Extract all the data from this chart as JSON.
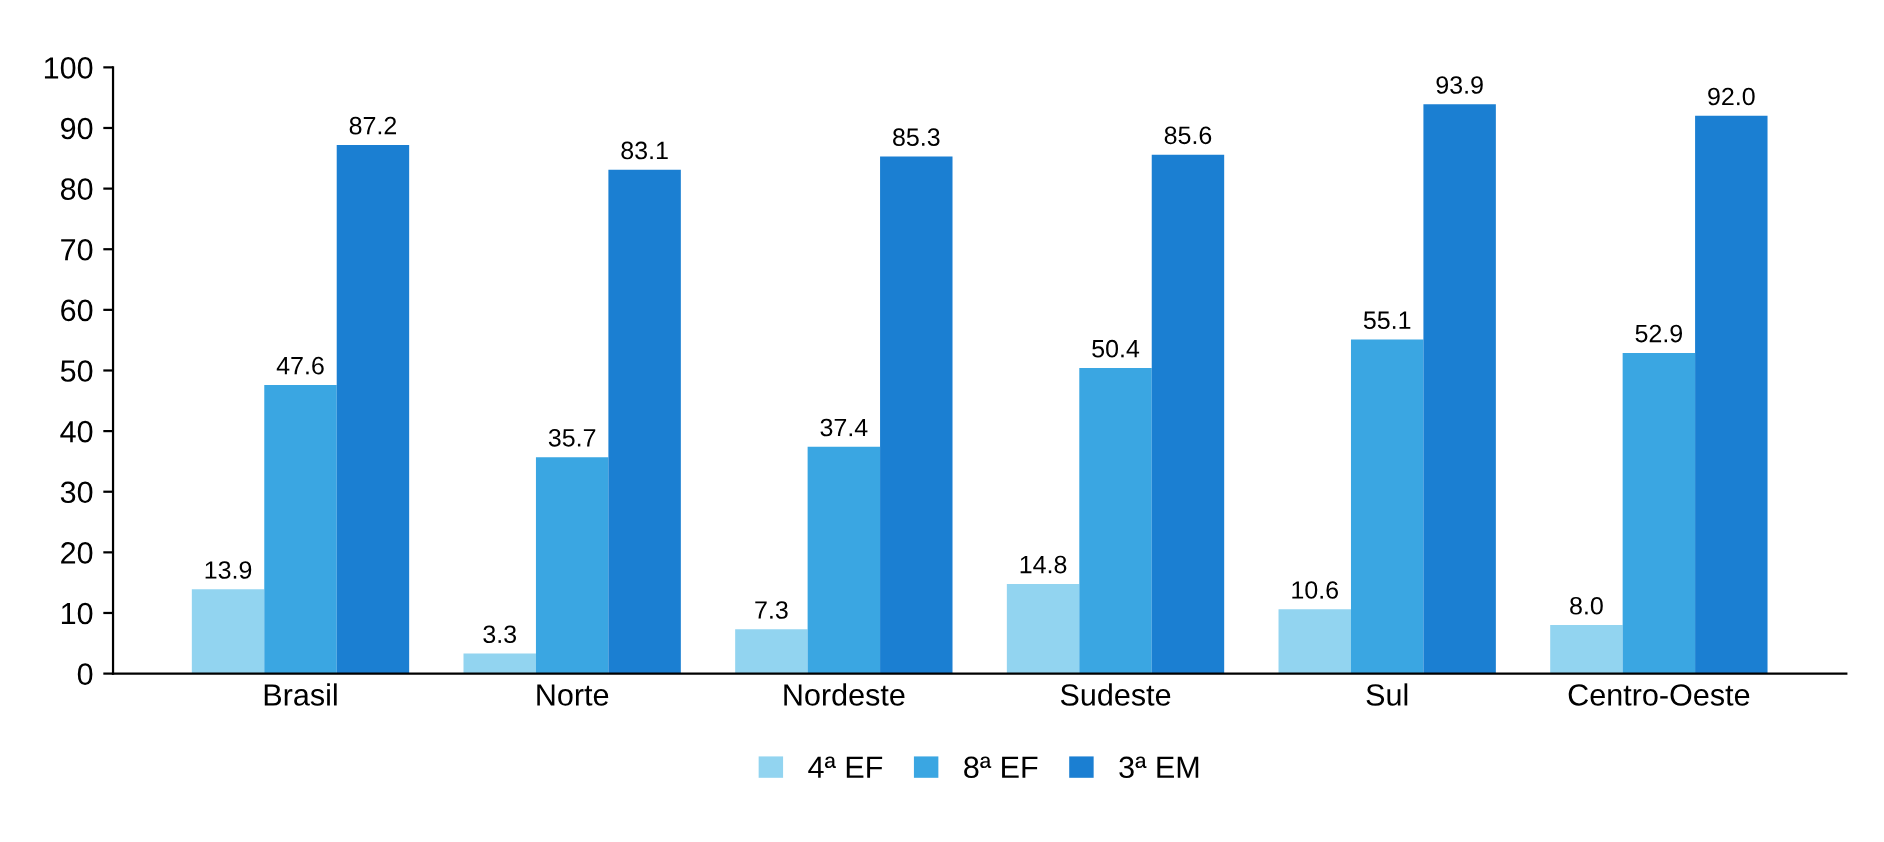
{
  "chart_data": {
    "type": "bar",
    "categories": [
      "Brasil",
      "Norte",
      "Nordeste",
      "Sudeste",
      "Sul",
      "Centro-Oeste"
    ],
    "series": [
      {
        "name": "4ª EF",
        "color": "#92d4f0",
        "values": [
          13.9,
          3.3,
          7.3,
          14.8,
          10.6,
          8.0
        ],
        "value_labels": [
          "13.9",
          "3.3",
          "7.3",
          "14.8",
          "10.6",
          "8.0"
        ]
      },
      {
        "name": "8ª EF",
        "color": "#3aa6e2",
        "values": [
          47.6,
          35.7,
          37.4,
          50.4,
          55.1,
          52.9
        ],
        "value_labels": [
          "47.6",
          "35.7",
          "37.4",
          "50.4",
          "55.1",
          "52.9"
        ]
      },
      {
        "name": "3ª EM",
        "color": "#1b7fd2",
        "values": [
          87.2,
          83.1,
          85.3,
          85.6,
          93.9,
          92.0
        ],
        "value_labels": [
          "87.2",
          "83.1",
          "85.3",
          "85.6",
          "93.9",
          "92.0"
        ]
      }
    ],
    "ylim": [
      0,
      100
    ],
    "yticks": [
      0,
      10,
      20,
      30,
      40,
      50,
      60,
      70,
      80,
      90,
      100
    ],
    "grid": false,
    "legend": "bottom"
  }
}
